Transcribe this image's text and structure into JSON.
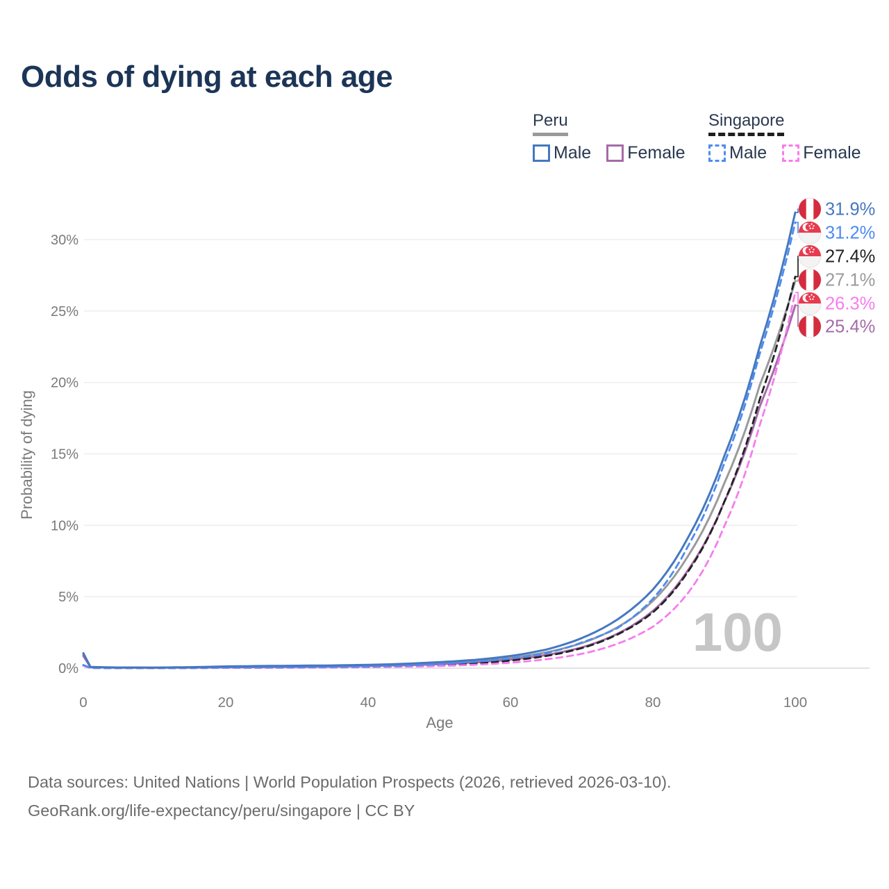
{
  "page": {
    "title": "Odds of dying at each age"
  },
  "legend": {
    "peru": {
      "label": "Peru",
      "male_label": "Male",
      "female_label": "Female"
    },
    "singapore": {
      "label": "Singapore",
      "male_label": "Male",
      "female_label": "Female"
    }
  },
  "watermark": "100",
  "footer": {
    "line1": "Data sources: United Nations | World Population Prospects (2026, retrieved 2026-03-10).",
    "line2": "GeoRank.org/life-expectancy/peru/singapore | CC BY"
  },
  "colors": {
    "title": "#1c3557",
    "axis_text": "#7a7a7a",
    "grid": "#ececec",
    "zero_line": "#d9d9d9",
    "watermark": "#c6c6c6",
    "peru_male": "#4578c0",
    "peru_female": "#a46ba8",
    "peru_combined": "#9a9a9a",
    "singapore_male": "#4d8bf0",
    "singapore_female": "#f77cee",
    "singapore_combined": "#222222",
    "flag_red_peru": "#d52b3f",
    "flag_red_singapore": "#e73a4e"
  },
  "chart_data": {
    "type": "line",
    "title": "Odds of dying at each age",
    "xlabel": "Age",
    "ylabel": "Probability of dying",
    "xlim": [
      0,
      100
    ],
    "ylim_percent": [
      0,
      33
    ],
    "grid": "horizontal-only",
    "x_ticks": [
      0,
      20,
      40,
      60,
      80,
      100
    ],
    "y_ticks": [
      {
        "value": 0,
        "label": "0%"
      },
      {
        "value": 5,
        "label": "5%"
      },
      {
        "value": 10,
        "label": "10%"
      },
      {
        "value": 15,
        "label": "15%"
      },
      {
        "value": 20,
        "label": "20%"
      },
      {
        "value": 25,
        "label": "25%"
      },
      {
        "value": 30,
        "label": "30%"
      }
    ],
    "series": [
      {
        "id": "peru-combined",
        "name": "Peru Combined",
        "country": "Peru",
        "flag": "peru",
        "color": "#9a9a9a",
        "dash": "solid",
        "end_label": "27.1%",
        "points": [
          [
            0,
            0.95
          ],
          [
            1,
            0.075
          ],
          [
            5,
            0.04
          ],
          [
            10,
            0.035
          ],
          [
            15,
            0.055
          ],
          [
            20,
            0.09
          ],
          [
            25,
            0.11
          ],
          [
            30,
            0.13
          ],
          [
            35,
            0.15
          ],
          [
            40,
            0.19
          ],
          [
            45,
            0.25
          ],
          [
            50,
            0.35
          ],
          [
            55,
            0.49
          ],
          [
            60,
            0.72
          ],
          [
            65,
            1.1
          ],
          [
            70,
            1.75
          ],
          [
            75,
            2.85
          ],
          [
            80,
            4.7
          ],
          [
            85,
            7.9
          ],
          [
            90,
            12.9
          ],
          [
            95,
            19.8
          ],
          [
            100,
            27.1
          ]
        ]
      },
      {
        "id": "peru-female",
        "name": "Peru Female",
        "country": "Peru",
        "flag": "peru",
        "color": "#a46ba8",
        "dash": "solid",
        "end_label": "25.4%",
        "points": [
          [
            0,
            0.85
          ],
          [
            1,
            0.065
          ],
          [
            5,
            0.035
          ],
          [
            10,
            0.03
          ],
          [
            15,
            0.04
          ],
          [
            20,
            0.06
          ],
          [
            25,
            0.075
          ],
          [
            30,
            0.09
          ],
          [
            35,
            0.11
          ],
          [
            40,
            0.15
          ],
          [
            45,
            0.2
          ],
          [
            50,
            0.28
          ],
          [
            55,
            0.4
          ],
          [
            60,
            0.6
          ],
          [
            65,
            0.92
          ],
          [
            70,
            1.45
          ],
          [
            75,
            2.4
          ],
          [
            80,
            4.0
          ],
          [
            85,
            6.9
          ],
          [
            90,
            11.6
          ],
          [
            95,
            18.3
          ],
          [
            100,
            25.4
          ]
        ]
      },
      {
        "id": "singapore-combined",
        "name": "Singapore Combined",
        "country": "Singapore",
        "flag": "singapore",
        "color": "#222222",
        "dash": "dashed",
        "end_label": "27.4%",
        "points": [
          [
            0,
            0.19
          ],
          [
            1,
            0.015
          ],
          [
            5,
            0.007
          ],
          [
            10,
            0.006
          ],
          [
            15,
            0.012
          ],
          [
            20,
            0.025
          ],
          [
            25,
            0.035
          ],
          [
            30,
            0.045
          ],
          [
            35,
            0.06
          ],
          [
            40,
            0.085
          ],
          [
            45,
            0.13
          ],
          [
            50,
            0.21
          ],
          [
            55,
            0.33
          ],
          [
            60,
            0.53
          ],
          [
            65,
            0.85
          ],
          [
            70,
            1.4
          ],
          [
            75,
            2.35
          ],
          [
            80,
            3.9
          ],
          [
            85,
            6.8
          ],
          [
            90,
            11.6
          ],
          [
            95,
            18.8
          ],
          [
            100,
            27.4
          ]
        ]
      },
      {
        "id": "singapore-female",
        "name": "Singapore Female",
        "country": "Singapore",
        "flag": "singapore",
        "color": "#f77cee",
        "dash": "dashed",
        "end_label": "26.3%",
        "points": [
          [
            0,
            0.17
          ],
          [
            1,
            0.012
          ],
          [
            5,
            0.006
          ],
          [
            10,
            0.005
          ],
          [
            15,
            0.009
          ],
          [
            20,
            0.018
          ],
          [
            25,
            0.025
          ],
          [
            30,
            0.033
          ],
          [
            35,
            0.045
          ],
          [
            40,
            0.065
          ],
          [
            45,
            0.1
          ],
          [
            50,
            0.15
          ],
          [
            55,
            0.24
          ],
          [
            60,
            0.38
          ],
          [
            65,
            0.62
          ],
          [
            70,
            1.0
          ],
          [
            75,
            1.7
          ],
          [
            80,
            2.9
          ],
          [
            85,
            5.3
          ],
          [
            90,
            9.9
          ],
          [
            95,
            17.0
          ],
          [
            100,
            26.3
          ]
        ]
      },
      {
        "id": "singapore-male",
        "name": "Singapore Male",
        "country": "Singapore",
        "flag": "singapore",
        "color": "#4d8bf0",
        "dash": "dashed",
        "end_label": "31.2%",
        "points": [
          [
            0,
            0.22
          ],
          [
            1,
            0.02
          ],
          [
            5,
            0.008
          ],
          [
            10,
            0.007
          ],
          [
            15,
            0.015
          ],
          [
            20,
            0.035
          ],
          [
            25,
            0.05
          ],
          [
            30,
            0.06
          ],
          [
            35,
            0.08
          ],
          [
            40,
            0.11
          ],
          [
            45,
            0.17
          ],
          [
            50,
            0.28
          ],
          [
            55,
            0.44
          ],
          [
            60,
            0.68
          ],
          [
            65,
            1.05
          ],
          [
            70,
            1.8
          ],
          [
            75,
            2.8
          ],
          [
            80,
            4.85
          ],
          [
            85,
            8.6
          ],
          [
            90,
            14.3
          ],
          [
            95,
            22.0
          ],
          [
            100,
            31.2
          ]
        ]
      },
      {
        "id": "peru-male",
        "name": "Peru Male",
        "country": "Peru",
        "flag": "peru",
        "color": "#4578c0",
        "dash": "solid",
        "end_label": "31.9%",
        "points": [
          [
            0,
            1.05
          ],
          [
            1,
            0.085
          ],
          [
            5,
            0.045
          ],
          [
            10,
            0.04
          ],
          [
            15,
            0.07
          ],
          [
            20,
            0.12
          ],
          [
            25,
            0.15
          ],
          [
            30,
            0.17
          ],
          [
            35,
            0.19
          ],
          [
            40,
            0.23
          ],
          [
            45,
            0.3
          ],
          [
            50,
            0.42
          ],
          [
            55,
            0.58
          ],
          [
            60,
            0.85
          ],
          [
            65,
            1.3
          ],
          [
            70,
            2.1
          ],
          [
            75,
            3.4
          ],
          [
            80,
            5.5
          ],
          [
            85,
            9.2
          ],
          [
            90,
            14.8
          ],
          [
            95,
            22.5
          ],
          [
            100,
            31.9
          ]
        ]
      }
    ],
    "end_label_order_top_to_bottom": [
      "peru-male",
      "singapore-male",
      "singapore-combined",
      "peru-combined",
      "singapore-female",
      "peru-female"
    ]
  }
}
